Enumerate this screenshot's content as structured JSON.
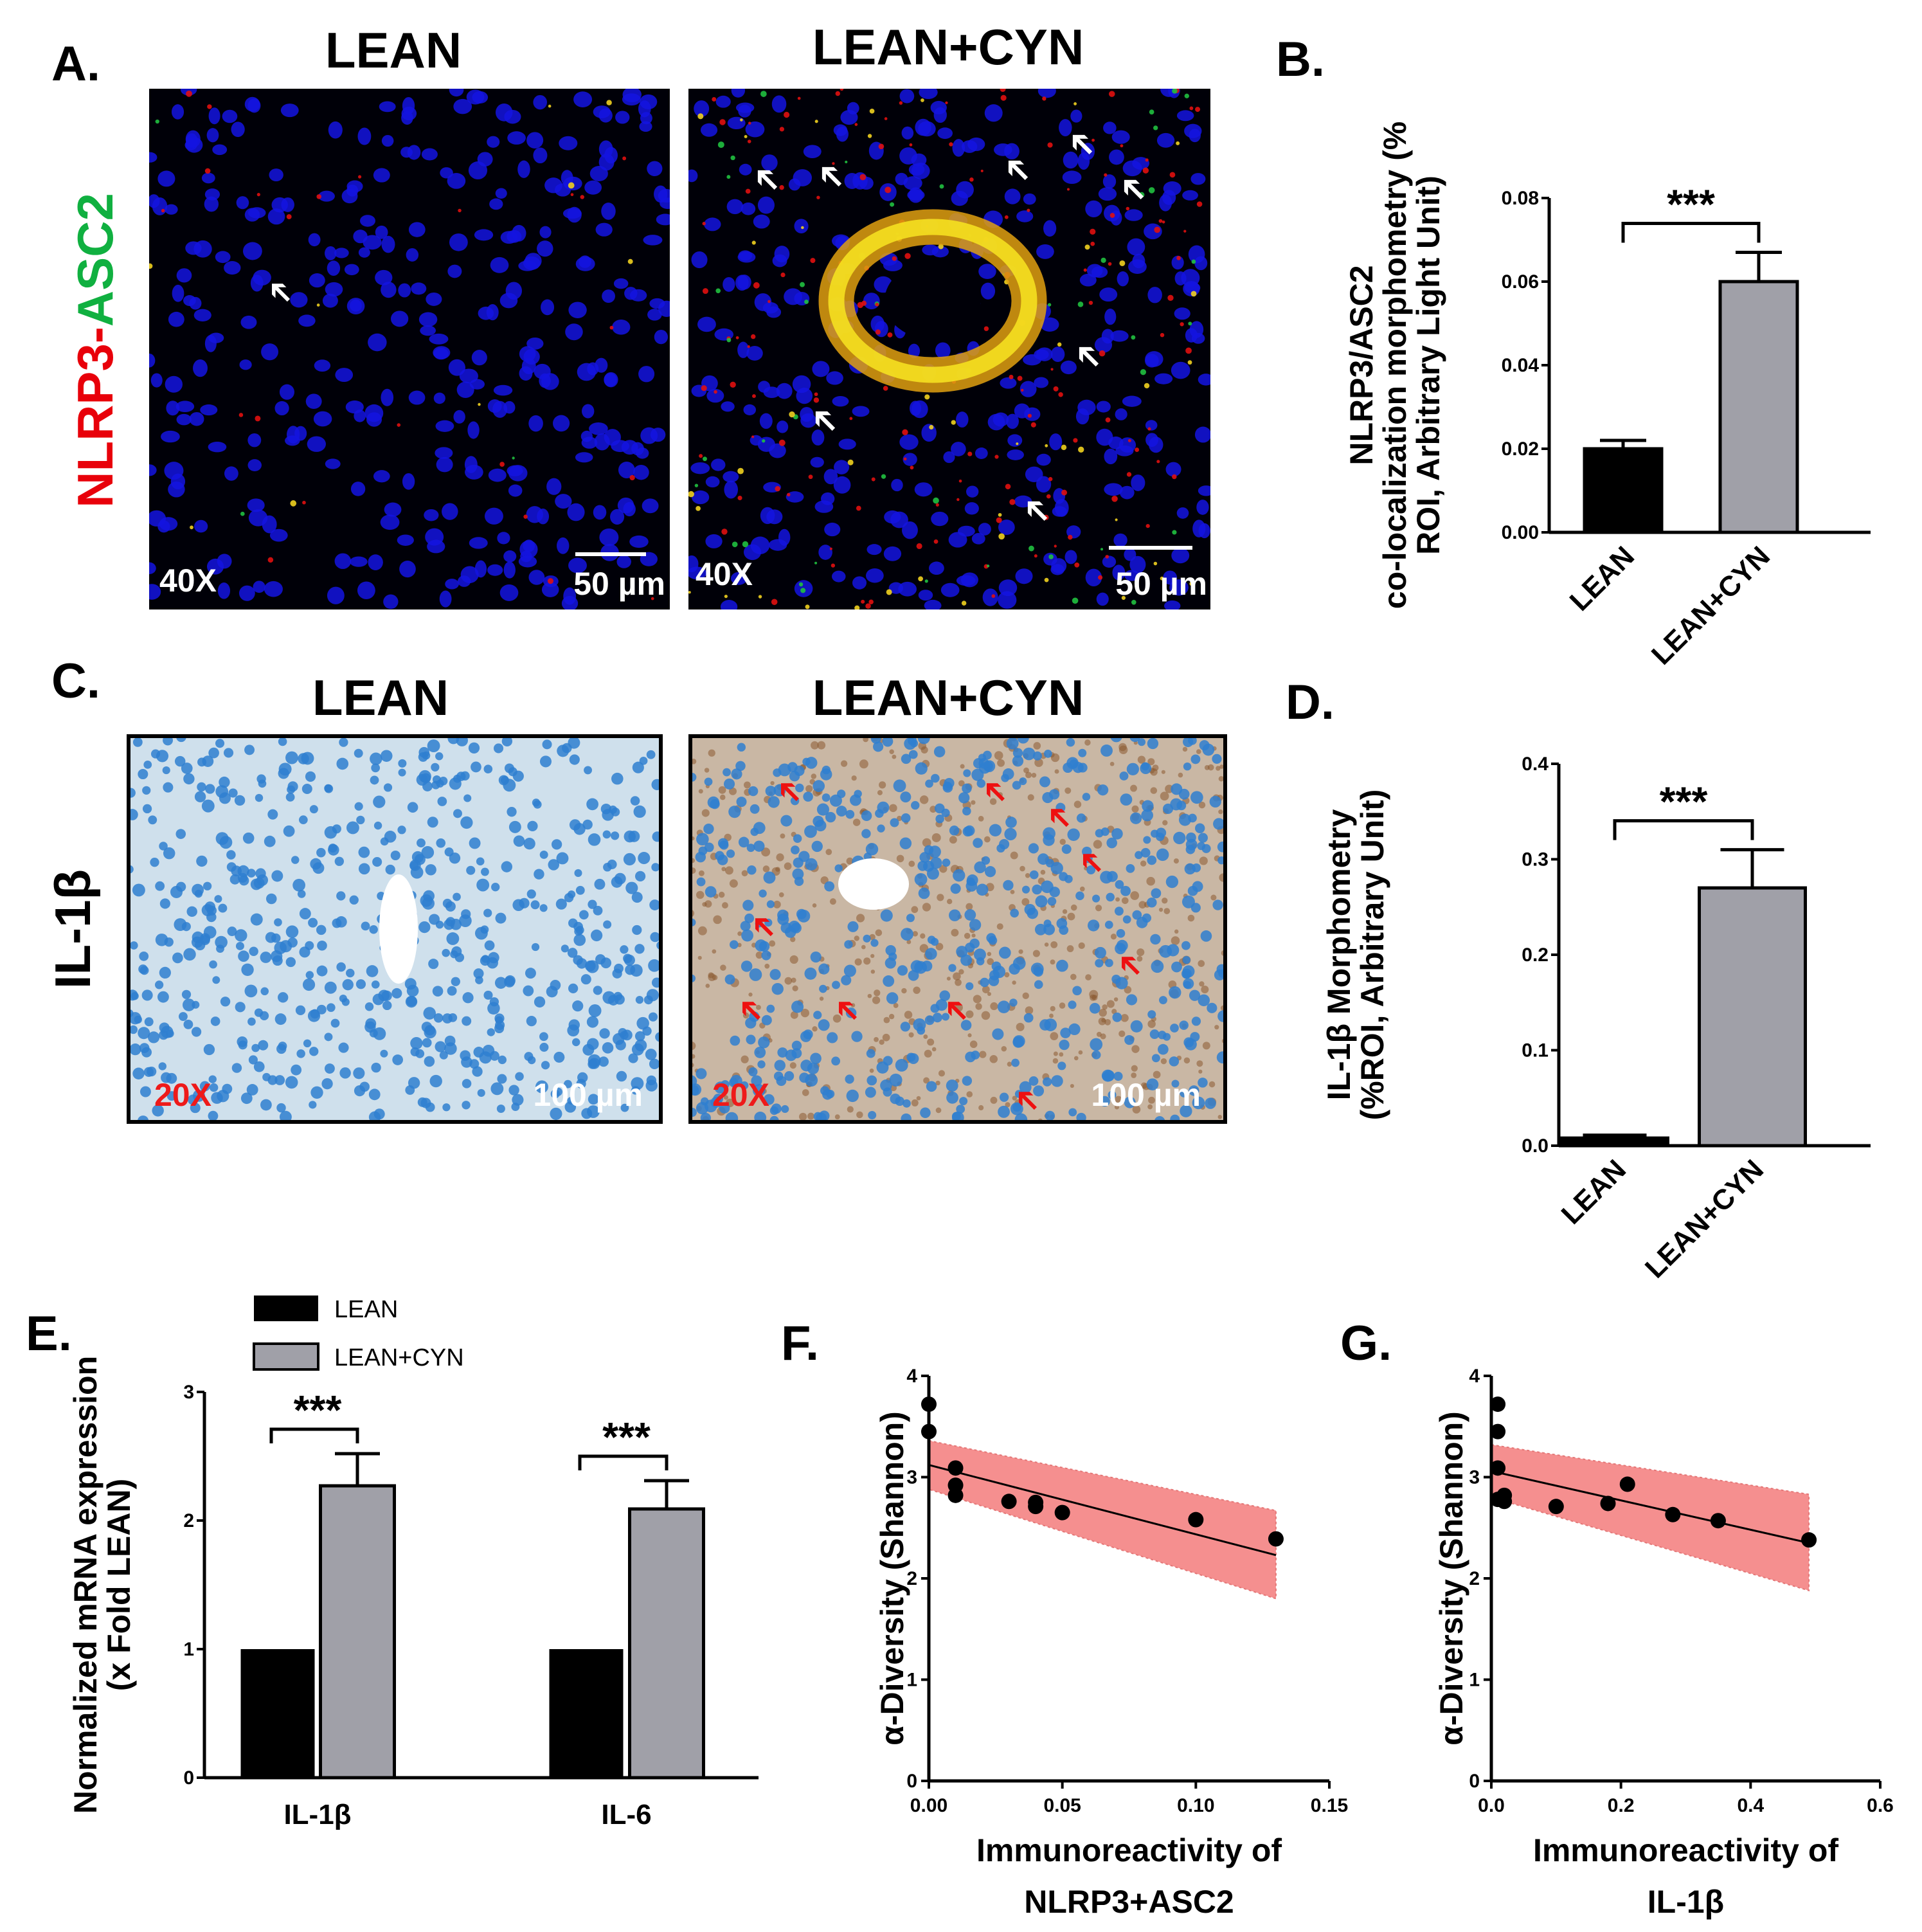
{
  "panels": {
    "A": {
      "label": "A.",
      "row_label_red": "NLRP3",
      "row_label_sep": "-",
      "row_label_green": "ASC2",
      "images": [
        {
          "title": "LEAN",
          "magnification": "40X",
          "scale": "50 µm"
        },
        {
          "title": "LEAN+CYN",
          "magnification": "40X",
          "scale": "50 µm"
        }
      ]
    },
    "C": {
      "label": "C.",
      "row_label": "IL-1β",
      "images": [
        {
          "title": "LEAN",
          "magnification": "20X",
          "scale": "100 µm"
        },
        {
          "title": "LEAN+CYN",
          "magnification": "20X",
          "scale": "100 µm"
        }
      ]
    },
    "B": {
      "label": "B."
    },
    "D": {
      "label": "D."
    },
    "E": {
      "label": "E."
    },
    "F": {
      "label": "F."
    },
    "G": {
      "label": "G."
    }
  },
  "colors": {
    "lean_bar": "#000000",
    "cyn_bar": "#a0a0a8",
    "band": "#f47c7c",
    "fluor_bg": "#000008",
    "nuclei": "#1414e0",
    "ihc_bg": "#cfe0ec",
    "ihc_nuclei": "#2f7fd0",
    "red_label": "#e8000a",
    "green_label": "#10b040"
  },
  "chart_data": [
    {
      "id": "B",
      "type": "bar",
      "categories": [
        "LEAN",
        "LEAN+CYN"
      ],
      "values": [
        0.02,
        0.06
      ],
      "errors": [
        0.002,
        0.007
      ],
      "ylabel_lines": [
        "NLRP3/ASC2",
        "co-localization morphometry (%",
        "ROI, Arbitrary Light Unit)"
      ],
      "ylim": [
        0,
        0.08
      ],
      "yticks": [
        "0.00",
        "0.02",
        "0.04",
        "0.06",
        "0.08"
      ],
      "significance": "***"
    },
    {
      "id": "D",
      "type": "bar",
      "categories": [
        "LEAN",
        "LEAN+CYN"
      ],
      "values": [
        0.008,
        0.27
      ],
      "errors": [
        0.003,
        0.04
      ],
      "ylabel_lines": [
        "IL-1β Morphometry",
        "(%ROI, Arbitrary Unit)"
      ],
      "ylim": [
        0,
        0.4
      ],
      "yticks": [
        "0.0",
        "0.1",
        "0.2",
        "0.3",
        "0.4"
      ],
      "significance": "***"
    },
    {
      "id": "E",
      "type": "bar",
      "categories": [
        "IL-1β",
        "IL-6"
      ],
      "series": [
        {
          "name": "LEAN",
          "values": [
            1,
            1
          ],
          "errors": [
            0,
            0
          ]
        },
        {
          "name": "LEAN+CYN",
          "values": [
            2.27,
            2.09
          ],
          "errors": [
            0.25,
            0.22
          ]
        }
      ],
      "ylabel_lines": [
        "Normalized mRNA expression",
        "(x Fold LEAN)"
      ],
      "ylim": [
        0,
        3
      ],
      "yticks": [
        "0",
        "1",
        "2",
        "3"
      ],
      "significance": [
        "***",
        "***"
      ],
      "legend": "top-left"
    },
    {
      "id": "F",
      "type": "scatter",
      "points": [
        {
          "x": 0.0,
          "y": 3.72
        },
        {
          "x": 0.0,
          "y": 3.45
        },
        {
          "x": 0.01,
          "y": 3.09
        },
        {
          "x": 0.01,
          "y": 2.92
        },
        {
          "x": 0.01,
          "y": 2.82
        },
        {
          "x": 0.03,
          "y": 2.76
        },
        {
          "x": 0.04,
          "y": 2.75
        },
        {
          "x": 0.04,
          "y": 2.71
        },
        {
          "x": 0.05,
          "y": 2.65
        },
        {
          "x": 0.1,
          "y": 2.58
        },
        {
          "x": 0.13,
          "y": 2.39
        }
      ],
      "fit": {
        "x0": 0.0,
        "y0": 3.12,
        "x1": 0.13,
        "y1": 2.23
      },
      "band": {
        "upper": [
          3.36,
          2.67
        ],
        "lower": [
          2.88,
          1.8
        ]
      },
      "xlabel_lines": [
        "Immunoreactivity of",
        "NLRP3+ASC2"
      ],
      "ylabel": "α-Diversity (Shannon)",
      "xlim": [
        0,
        0.15
      ],
      "ylim": [
        0,
        4
      ],
      "xticks": [
        "0.00",
        "0.05",
        "0.10",
        "0.15"
      ],
      "yticks": [
        "0",
        "1",
        "2",
        "3",
        "4"
      ]
    },
    {
      "id": "G",
      "type": "scatter",
      "points": [
        {
          "x": 0.01,
          "y": 3.72
        },
        {
          "x": 0.01,
          "y": 3.45
        },
        {
          "x": 0.01,
          "y": 3.09
        },
        {
          "x": 0.01,
          "y": 2.78
        },
        {
          "x": 0.02,
          "y": 2.82
        },
        {
          "x": 0.02,
          "y": 2.76
        },
        {
          "x": 0.1,
          "y": 2.71
        },
        {
          "x": 0.18,
          "y": 2.74
        },
        {
          "x": 0.21,
          "y": 2.93
        },
        {
          "x": 0.28,
          "y": 2.63
        },
        {
          "x": 0.35,
          "y": 2.57
        },
        {
          "x": 0.49,
          "y": 2.38
        }
      ],
      "fit": {
        "x0": 0.0,
        "y0": 3.06,
        "x1": 0.49,
        "y1": 2.35
      },
      "band": {
        "upper": [
          3.32,
          2.83
        ],
        "lower": [
          2.8,
          1.88
        ]
      },
      "xlabel_lines": [
        "Immunoreactivity of",
        "IL-1β"
      ],
      "ylabel": "α-Diversity (Shannon)",
      "xlim": [
        0,
        0.6
      ],
      "ylim": [
        0,
        4
      ],
      "xticks": [
        "0.0",
        "0.2",
        "0.4",
        "0.6"
      ],
      "yticks": [
        "0",
        "1",
        "2",
        "3",
        "4"
      ]
    }
  ]
}
